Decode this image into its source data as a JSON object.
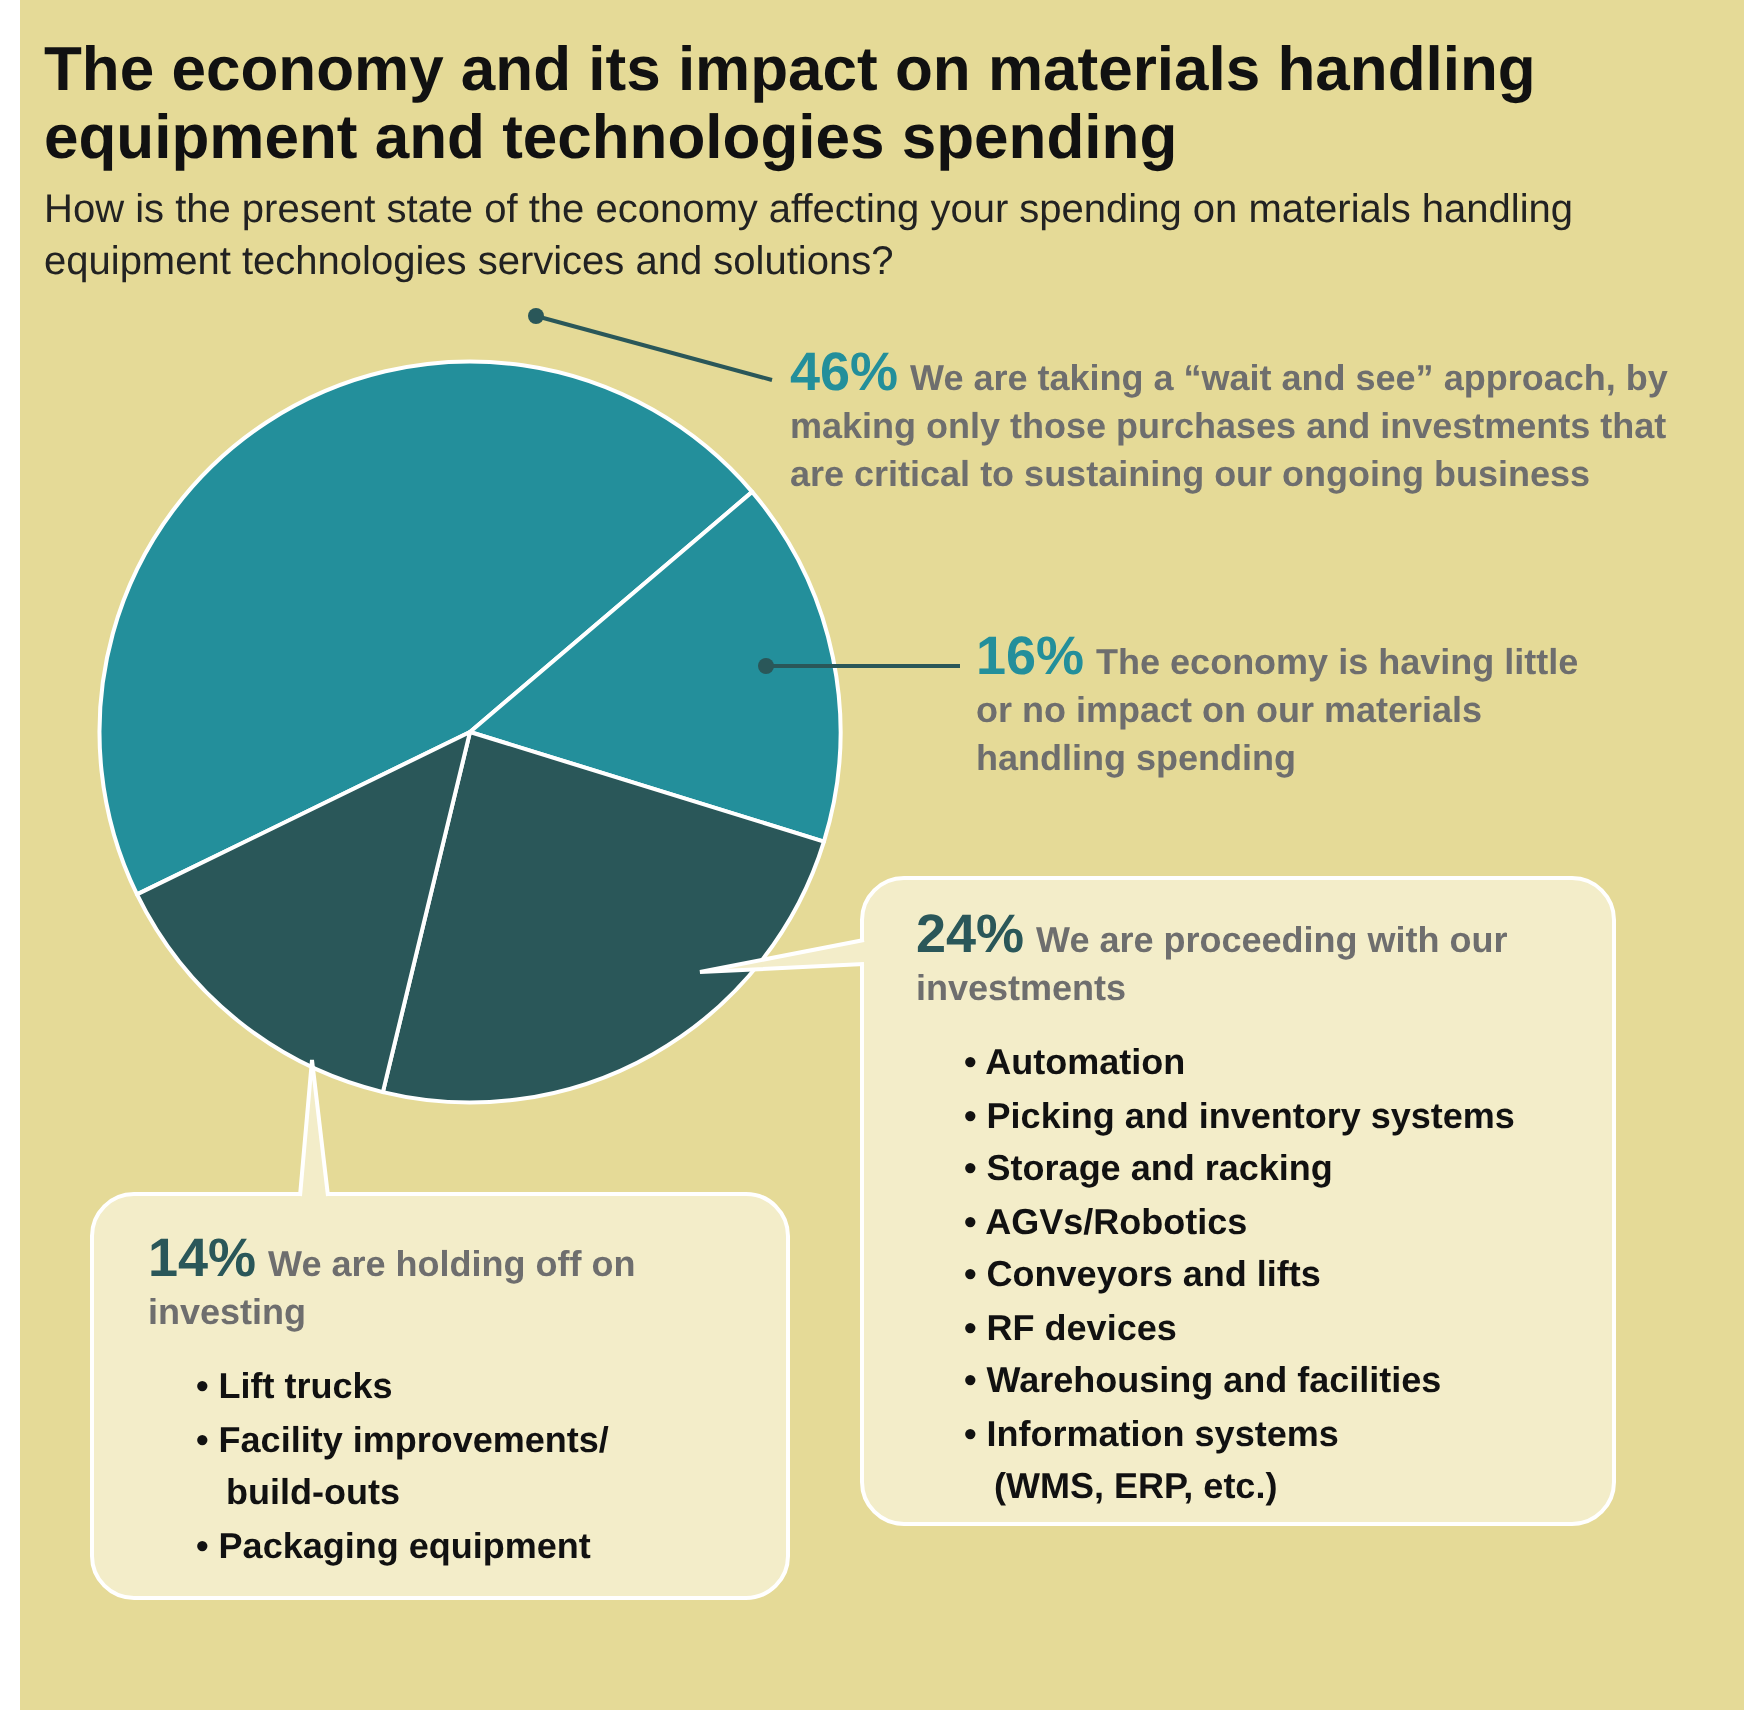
{
  "chart_data": {
    "type": "pie",
    "title": "The economy and its impact on materials handling equipment and technologies spending",
    "subtitle": "How is the present state of the economy affecting your spending on materials handling equipment technologies services and solutions?",
    "categories": [
      "We are taking a “wait and see” approach, by making only those purchases and investments that are critical to sustaining our ongoing business",
      "The economy is having little or no impact on our materials handling spending",
      "We are proceeding with our investments",
      "We are holding off on investing"
    ],
    "values": [
      46,
      16,
      24,
      14
    ],
    "value_labels": [
      "46%",
      "16%",
      "24%",
      "14%"
    ],
    "colors": [
      "#238f9b",
      "#238f9b",
      "#2a5759",
      "#2a5759"
    ],
    "annotations": [
      "• Automation\n• Picking and inventory systems\n• Storage and racking\n• AGVs/Robotics\n• Conveyors and lifts\n• RF devices\n• Warehousing and facilities\n• Information systems\n   (WMS, ERP, etc.)",
      "• Lift trucks\n• Facility improvements/\n   build-outs\n• Packaging equipment"
    ]
  }
}
